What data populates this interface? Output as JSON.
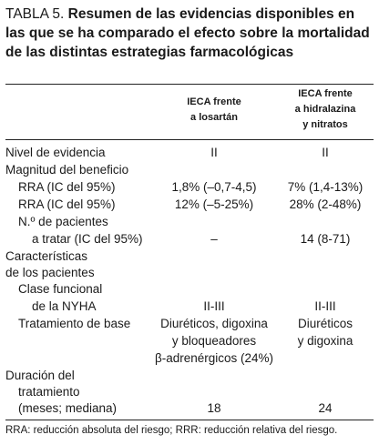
{
  "table": {
    "title_lead": "TABLA 5.",
    "title_bold": "Resumen de las evidencias disponibles en las que se ha comparado el efecto sobre la mortalidad de las distintas estrategias farmacológicas",
    "col2_header": [
      "IECA frente",
      "a losartán"
    ],
    "col3_header": [
      "IECA frente",
      "a hidralazina",
      "y nitratos"
    ],
    "rows": {
      "nivel": {
        "label": "Nivel de evidencia",
        "col2": "II",
        "col3": "II"
      },
      "magnitud": {
        "label": "Magnitud del beneficio"
      },
      "rra": {
        "label": "RRA (IC del 95%)",
        "col2": "1,8% (–0,7-4,5)",
        "col3": "7% (1,4-13%)"
      },
      "rrr": {
        "label": "RRA (IC del 95%)",
        "col2": "12% (–5-25%)",
        "col3": "28% (2-48%)"
      },
      "npt1": {
        "label": "N.º de pacientes"
      },
      "npt2": {
        "label": "a tratar (IC del 95%)",
        "col2": "–",
        "col3": "14 (8-71)"
      },
      "car1": {
        "label": "Características"
      },
      "car2": {
        "label": "de los pacientes"
      },
      "clase1": {
        "label": "Clase funcional"
      },
      "clase2": {
        "label": "de la NYHA",
        "col2": "II-III",
        "col3": "II-III"
      },
      "trat1": {
        "label": "Tratamiento de base",
        "col2": "Diuréticos, digoxina",
        "col3": "Diuréticos"
      },
      "trat2": {
        "col2": "y bloqueadores",
        "col3": "y digoxina"
      },
      "trat3": {
        "col2": "β-adrenérgicos (24%)"
      },
      "dur1": {
        "label": "Duración del"
      },
      "dur2": {
        "label": "tratamiento"
      },
      "dur3": {
        "label": "(meses; mediana)",
        "col2": "18",
        "col3": "24"
      }
    },
    "footnote": "RRA: reducción absoluta del riesgo; RRR: reducción relativa del riesgo."
  }
}
